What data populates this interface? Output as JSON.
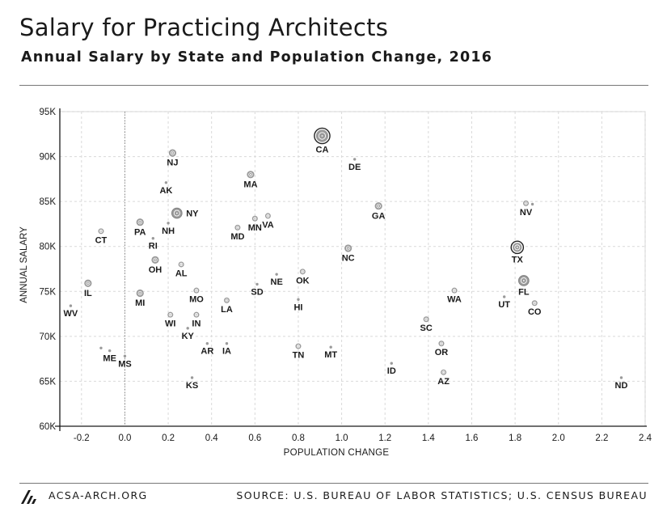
{
  "header": {
    "title": "Salary for Practicing Architects",
    "subtitle": "Annual Salary by State and Population Change, 2016"
  },
  "footer": {
    "site": "ACSA-ARCH.ORG",
    "source": "SOURCE: U.S. BUREAU OF LABOR STATISTICS; U.S. CENSUS BUREAU"
  },
  "chart_data": {
    "type": "scatter",
    "xlabel": "POPULATION CHANGE",
    "ylabel": "ANNUAL SALARY",
    "xlim": [
      -0.3,
      2.4
    ],
    "ylim": [
      60000,
      95000
    ],
    "x_ticks": [
      -0.2,
      0.0,
      0.2,
      0.4,
      0.6,
      0.8,
      1.0,
      1.2,
      1.4,
      1.6,
      1.8,
      2.0,
      2.2,
      2.4
    ],
    "x_tick_labels": [
      "-0.2",
      "0.0",
      "0.2",
      "0.4",
      "0.6",
      "0.8",
      "1.0",
      "1.2",
      "1.4",
      "1.6",
      "1.8",
      "2.0",
      "2.2",
      "2.4"
    ],
    "y_ticks": [
      60000,
      65000,
      70000,
      75000,
      80000,
      85000,
      90000,
      95000
    ],
    "y_tick_labels": [
      "60K",
      "65K",
      "70K",
      "75K",
      "80K",
      "85K",
      "90K",
      "95K"
    ],
    "grid": true,
    "zero_line": true,
    "colors": {
      "point": "#9a9a9a",
      "ring": "#222222",
      "grid": "#d9d9d9",
      "text": "#1a1a1a"
    },
    "points": [
      {
        "label": "CA",
        "x": 0.91,
        "y": 92300,
        "size": 6,
        "label_pos": "below"
      },
      {
        "label": "DE",
        "x": 1.06,
        "y": 89700,
        "size": 1,
        "label_pos": "below"
      },
      {
        "label": "NJ",
        "x": 0.22,
        "y": 90400,
        "size": 3,
        "label_pos": "below"
      },
      {
        "label": "MA",
        "x": 0.58,
        "y": 88000,
        "size": 3,
        "label_pos": "below"
      },
      {
        "label": "AK",
        "x": 0.19,
        "y": 87100,
        "size": 1,
        "label_pos": "below"
      },
      {
        "label": "GA",
        "x": 1.17,
        "y": 84500,
        "size": 3,
        "label_pos": "below"
      },
      {
        "label": "NV",
        "x": 1.85,
        "y": 84800,
        "size": 2,
        "label_pos": "below"
      },
      {
        "label": "NY",
        "x": 0.24,
        "y": 83700,
        "size": 4,
        "label_pos": "right"
      },
      {
        "label": "NH",
        "x": 0.2,
        "y": 82600,
        "size": 1,
        "label_pos": "below"
      },
      {
        "label": "PA",
        "x": 0.07,
        "y": 82700,
        "size": 3,
        "label_pos": "below"
      },
      {
        "label": "MN",
        "x": 0.6,
        "y": 83100,
        "size": 2,
        "label_pos": "below"
      },
      {
        "label": "VA",
        "x": 0.66,
        "y": 83400,
        "size": 2,
        "label_pos": "below"
      },
      {
        "label": "MD",
        "x": 0.52,
        "y": 82100,
        "size": 2,
        "label_pos": "below"
      },
      {
        "label": "CT",
        "x": -0.11,
        "y": 81700,
        "size": 2,
        "label_pos": "below"
      },
      {
        "label": "RI",
        "x": 0.13,
        "y": 80900,
        "size": 1,
        "label_pos": "below"
      },
      {
        "label": "NC",
        "x": 1.03,
        "y": 79800,
        "size": 3,
        "label_pos": "below"
      },
      {
        "label": "TX",
        "x": 1.81,
        "y": 79900,
        "size": 5,
        "label_pos": "below"
      },
      {
        "label": "OH",
        "x": 0.14,
        "y": 78500,
        "size": 3,
        "label_pos": "below"
      },
      {
        "label": "AL",
        "x": 0.26,
        "y": 78000,
        "size": 2,
        "label_pos": "below"
      },
      {
        "label": "OK",
        "x": 0.82,
        "y": 77200,
        "size": 2,
        "label_pos": "below"
      },
      {
        "label": "NE",
        "x": 0.7,
        "y": 76900,
        "size": 1,
        "label_pos": "below"
      },
      {
        "label": "FL",
        "x": 1.84,
        "y": 76200,
        "size": 4,
        "label_pos": "below"
      },
      {
        "label": "IL",
        "x": -0.17,
        "y": 75900,
        "size": 3,
        "label_pos": "below"
      },
      {
        "label": "SD",
        "x": 0.61,
        "y": 75800,
        "size": 1,
        "label_pos": "below"
      },
      {
        "label": "MO",
        "x": 0.33,
        "y": 75100,
        "size": 2,
        "label_pos": "below"
      },
      {
        "label": "WA",
        "x": 1.52,
        "y": 75100,
        "size": 2,
        "label_pos": "below"
      },
      {
        "label": "MI",
        "x": 0.07,
        "y": 74800,
        "size": 3,
        "label_pos": "below"
      },
      {
        "label": "UT",
        "x": 1.75,
        "y": 74400,
        "size": 1,
        "label_pos": "below"
      },
      {
        "label": "HI",
        "x": 0.8,
        "y": 74100,
        "size": 1,
        "label_pos": "below"
      },
      {
        "label": "LA",
        "x": 0.47,
        "y": 74000,
        "size": 2,
        "label_pos": "below"
      },
      {
        "label": "CO",
        "x": 1.89,
        "y": 73700,
        "size": 2,
        "label_pos": "below"
      },
      {
        "label": "WV",
        "x": -0.25,
        "y": 73400,
        "size": 1,
        "label_pos": "below"
      },
      {
        "label": "WI",
        "x": 0.21,
        "y": 72400,
        "size": 2,
        "label_pos": "below"
      },
      {
        "label": "IN",
        "x": 0.33,
        "y": 72400,
        "size": 2,
        "label_pos": "below"
      },
      {
        "label": "SC",
        "x": 1.39,
        "y": 71900,
        "size": 2,
        "label_pos": "below"
      },
      {
        "label": "KY",
        "x": 0.29,
        "y": 70900,
        "size": 1,
        "label_pos": "below"
      },
      {
        "label": "AR",
        "x": 0.38,
        "y": 69200,
        "size": 1,
        "label_pos": "below"
      },
      {
        "label": "IA",
        "x": 0.47,
        "y": 69200,
        "size": 1,
        "label_pos": "below"
      },
      {
        "label": "OR",
        "x": 1.46,
        "y": 69200,
        "size": 2,
        "label_pos": "below"
      },
      {
        "label": "TN",
        "x": 0.8,
        "y": 68900,
        "size": 2,
        "label_pos": "below"
      },
      {
        "label": "MT",
        "x": 0.95,
        "y": 68800,
        "size": 1,
        "label_pos": "below"
      },
      {
        "label": "ME",
        "x": -0.07,
        "y": 68400,
        "size": 1,
        "label_pos": "below"
      },
      {
        "label": "MS",
        "x": 0.0,
        "y": 67800,
        "size": 1,
        "label_pos": "below"
      },
      {
        "label": "ID",
        "x": 1.23,
        "y": 67000,
        "size": 1,
        "label_pos": "below"
      },
      {
        "label": "AZ",
        "x": 1.47,
        "y": 66000,
        "size": 2,
        "label_pos": "below"
      },
      {
        "label": "KS",
        "x": 0.31,
        "y": 65400,
        "size": 1,
        "label_pos": "below"
      },
      {
        "label": "ND",
        "x": 2.29,
        "y": 65400,
        "size": 1,
        "label_pos": "below"
      }
    ],
    "extra_marks": [
      {
        "x": -0.11,
        "y": 68700,
        "size": 1
      },
      {
        "x": 1.88,
        "y": 84700,
        "size": 1
      }
    ]
  }
}
